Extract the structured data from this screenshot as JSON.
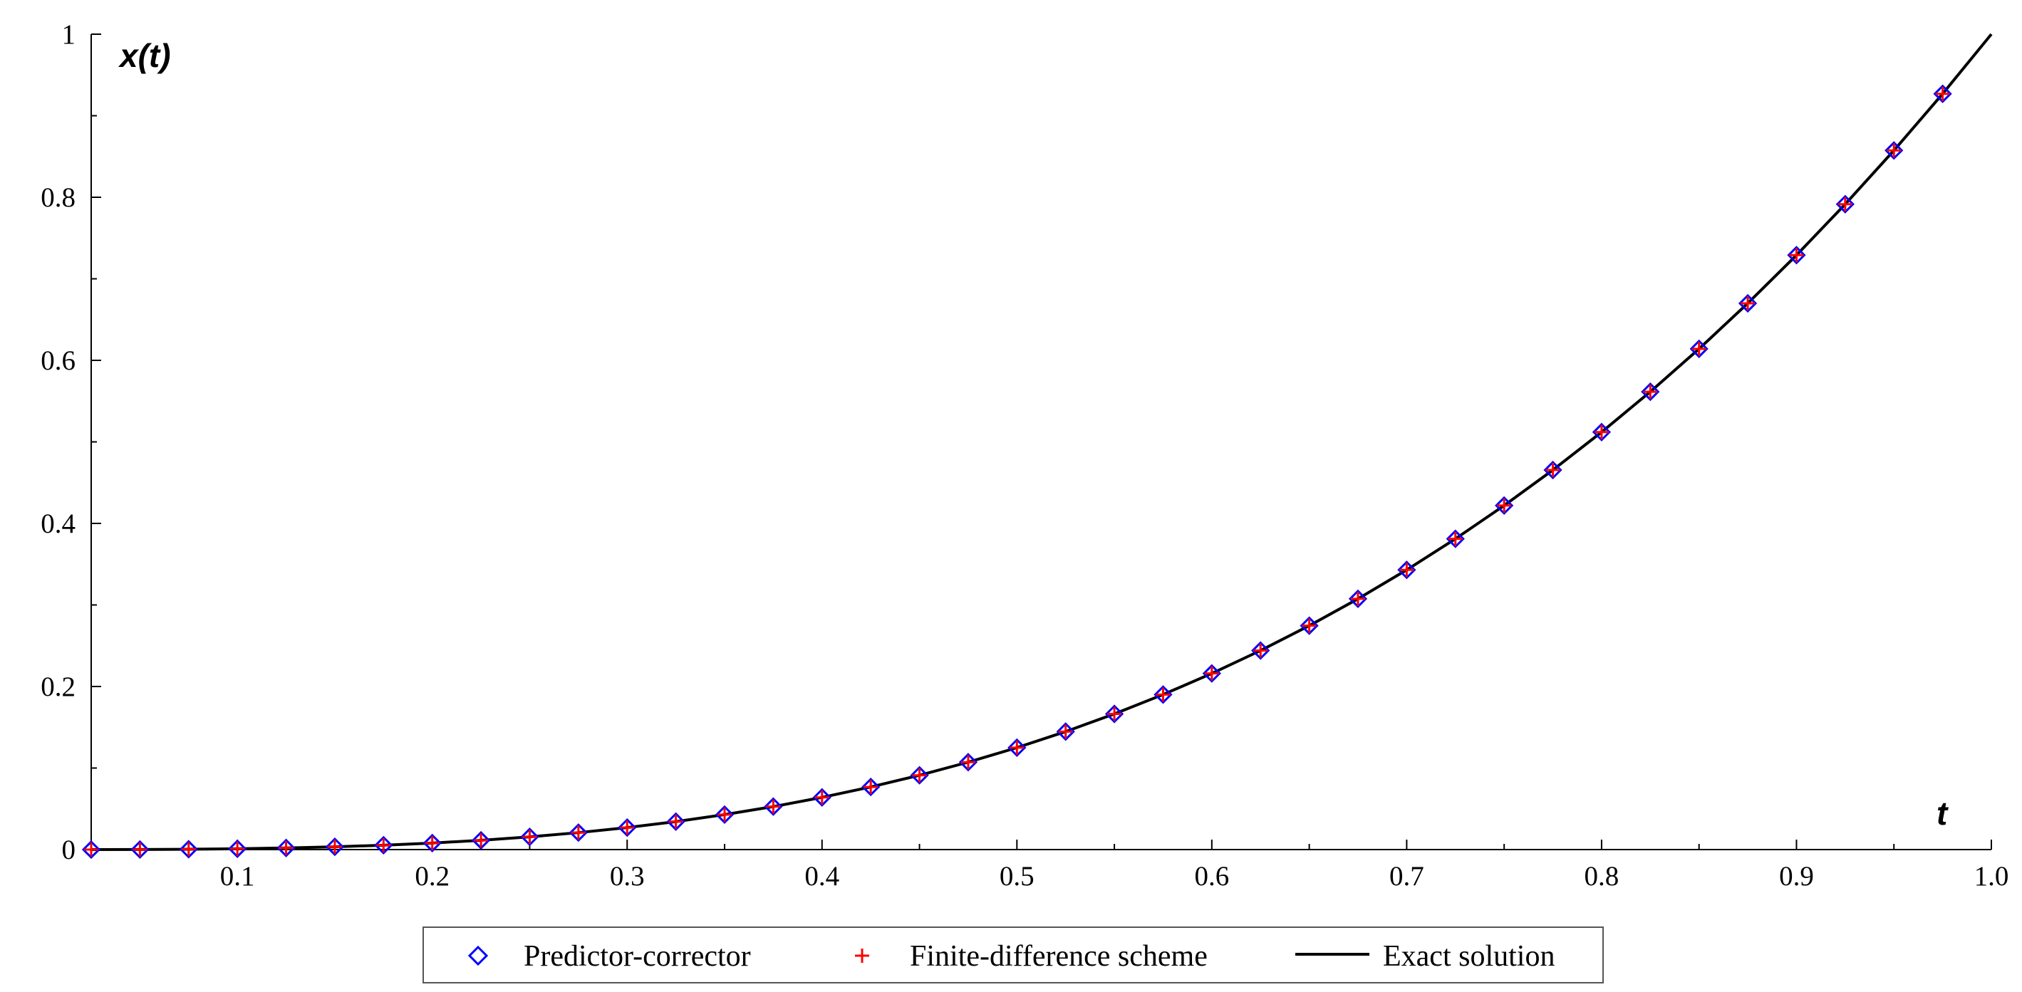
{
  "chart_data": {
    "type": "line",
    "xlabel": "t",
    "ylabel": "x(t)",
    "xlim": [
      0.025,
      1.0
    ],
    "ylim": [
      0,
      1
    ],
    "x_ticks": [
      "0.1",
      "0.2",
      "0.3",
      "0.4",
      "0.5",
      "0.6",
      "0.7",
      "0.8",
      "0.9",
      "1.0"
    ],
    "x_tick_values": [
      0.1,
      0.2,
      0.3,
      0.4,
      0.5,
      0.6,
      0.7,
      0.8,
      0.9,
      1.0
    ],
    "y_ticks": [
      "0",
      "0.2",
      "0.4",
      "0.6",
      "0.8",
      "1"
    ],
    "y_tick_values": [
      0,
      0.2,
      0.4,
      0.6,
      0.8,
      1
    ],
    "grid": false,
    "legend_position": "bottom",
    "series": [
      {
        "name": "Predictor-corrector",
        "marker": "diamond",
        "color": "#0000ff",
        "x": [
          0.025,
          0.05,
          0.075,
          0.1,
          0.125,
          0.15,
          0.175,
          0.2,
          0.225,
          0.25,
          0.275,
          0.3,
          0.325,
          0.35,
          0.375,
          0.4,
          0.425,
          0.45,
          0.475,
          0.5,
          0.525,
          0.55,
          0.575,
          0.6,
          0.625,
          0.65,
          0.675,
          0.7,
          0.725,
          0.75,
          0.775,
          0.8,
          0.825,
          0.85,
          0.875,
          0.9,
          0.925,
          0.95,
          0.975
        ],
        "y": [
          0.0,
          0.0001,
          0.0004,
          0.001,
          0.002,
          0.0034,
          0.0054,
          0.008,
          0.0114,
          0.0156,
          0.0208,
          0.027,
          0.0343,
          0.0429,
          0.0527,
          0.064,
          0.0768,
          0.0911,
          0.1072,
          0.125,
          0.1447,
          0.1664,
          0.1901,
          0.216,
          0.2441,
          0.2746,
          0.3075,
          0.343,
          0.3811,
          0.4219,
          0.4655,
          0.512,
          0.5615,
          0.6141,
          0.6699,
          0.729,
          0.7915,
          0.8574,
          0.9269
        ]
      },
      {
        "name": "Finite-difference scheme",
        "marker": "plus",
        "color": "#ff0000",
        "x": [
          0.025,
          0.05,
          0.075,
          0.1,
          0.125,
          0.15,
          0.175,
          0.2,
          0.225,
          0.25,
          0.275,
          0.3,
          0.325,
          0.35,
          0.375,
          0.4,
          0.425,
          0.45,
          0.475,
          0.5,
          0.525,
          0.55,
          0.575,
          0.6,
          0.625,
          0.65,
          0.675,
          0.7,
          0.725,
          0.75,
          0.775,
          0.8,
          0.825,
          0.85,
          0.875,
          0.9,
          0.925,
          0.95,
          0.975
        ],
        "y": [
          0.0,
          0.0001,
          0.0004,
          0.001,
          0.002,
          0.0034,
          0.0054,
          0.008,
          0.0114,
          0.0156,
          0.0208,
          0.027,
          0.0343,
          0.0429,
          0.0527,
          0.064,
          0.0768,
          0.0911,
          0.1072,
          0.125,
          0.1447,
          0.1664,
          0.1901,
          0.216,
          0.2441,
          0.2746,
          0.3075,
          0.343,
          0.3811,
          0.4219,
          0.4655,
          0.512,
          0.5615,
          0.6141,
          0.6699,
          0.729,
          0.7915,
          0.8574,
          0.9269
        ]
      },
      {
        "name": "Exact solution",
        "marker": "line",
        "color": "#000000",
        "x": [
          0.025,
          0.05,
          0.075,
          0.1,
          0.125,
          0.15,
          0.175,
          0.2,
          0.225,
          0.25,
          0.275,
          0.3,
          0.325,
          0.35,
          0.375,
          0.4,
          0.425,
          0.45,
          0.475,
          0.5,
          0.525,
          0.55,
          0.575,
          0.6,
          0.625,
          0.65,
          0.675,
          0.7,
          0.725,
          0.75,
          0.775,
          0.8,
          0.825,
          0.85,
          0.875,
          0.9,
          0.925,
          0.95,
          0.975,
          1.0
        ],
        "y": [
          0.0,
          0.0001,
          0.0004,
          0.001,
          0.002,
          0.0034,
          0.0054,
          0.008,
          0.0114,
          0.0156,
          0.0208,
          0.027,
          0.0343,
          0.0429,
          0.0527,
          0.064,
          0.0768,
          0.0911,
          0.1072,
          0.125,
          0.1447,
          0.1664,
          0.1901,
          0.216,
          0.2441,
          0.2746,
          0.3075,
          0.343,
          0.3811,
          0.4219,
          0.4655,
          0.512,
          0.5615,
          0.6141,
          0.6699,
          0.729,
          0.7915,
          0.8574,
          0.9269,
          1.0
        ]
      }
    ]
  }
}
